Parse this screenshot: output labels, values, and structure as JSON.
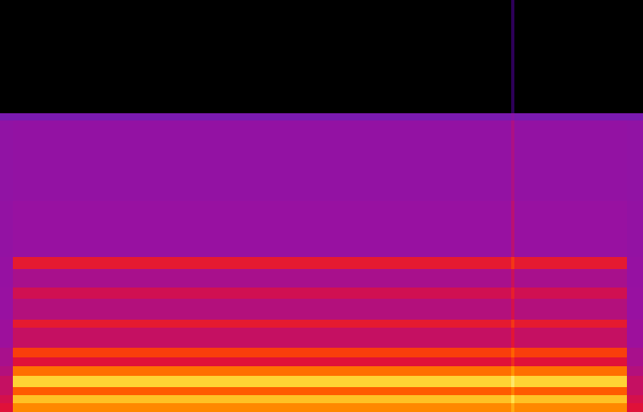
{
  "chart_data": {
    "type": "spectrogram",
    "tick_labels": false,
    "x_edges": [
      0,
      2,
      79.5,
      80,
      97.5,
      100
    ],
    "y_edges": [
      0,
      0.47,
      0.9,
      1.33,
      1.93,
      2.45,
      2.92,
      3.44,
      4.51,
      4.94,
      6.06,
      6.66,
      7.65,
      8.3,
      11.3,
      15.6,
      16.0,
      22.05
    ],
    "zlim": [
      0,
      100
    ],
    "cells": [
      [
        50,
        72,
        78,
        72,
        50
      ],
      [
        48,
        82,
        88,
        82,
        48
      ],
      [
        45,
        65,
        71,
        65,
        45
      ],
      [
        45,
        85,
        90,
        85,
        45
      ],
      [
        42,
        68,
        74,
        68,
        42
      ],
      [
        40,
        50,
        56,
        50,
        40
      ],
      [
        40,
        60,
        66,
        60,
        40
      ],
      [
        38,
        45,
        51,
        45,
        38
      ],
      [
        38,
        52,
        58,
        52,
        38
      ],
      [
        37,
        42,
        48,
        42,
        37
      ],
      [
        37,
        47,
        53,
        47,
        37
      ],
      [
        36,
        40,
        46,
        40,
        36
      ],
      [
        36,
        52,
        58,
        52,
        36
      ],
      [
        35,
        37,
        43,
        37,
        35
      ],
      [
        34,
        35,
        41,
        35,
        34
      ],
      [
        25,
        25,
        31,
        25,
        25
      ],
      [
        0,
        0,
        10,
        0,
        0
      ]
    ]
  }
}
